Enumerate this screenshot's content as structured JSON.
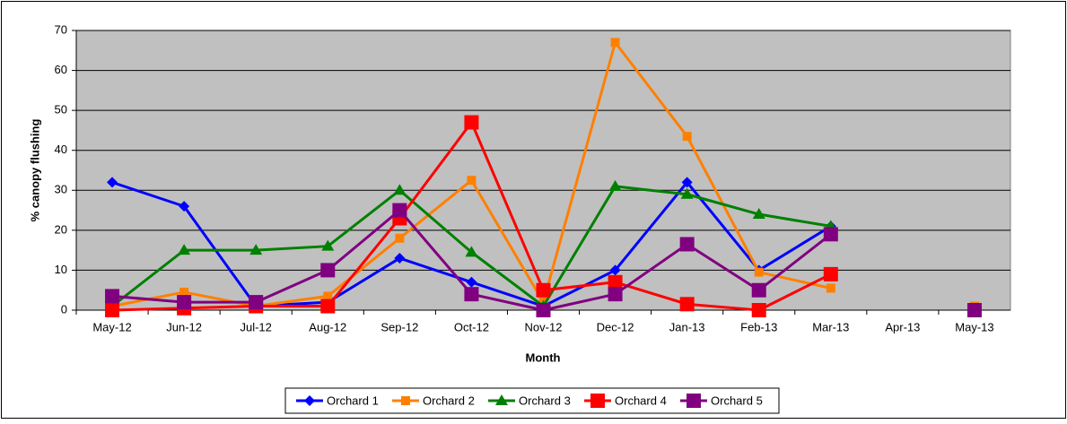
{
  "chart_data": {
    "type": "line",
    "y_label": "% canopy flushing",
    "x_label": "Month",
    "categories": [
      "May-12",
      "Jun-12",
      "Jul-12",
      "Aug-12",
      "Sep-12",
      "Oct-12",
      "Nov-12",
      "Dec-12",
      "Jan-13",
      "Feb-13",
      "Mar-13",
      "Apr-13",
      "May-13"
    ],
    "series": [
      {
        "name": "Orchard 1",
        "color": "#0000ff",
        "marker": "diamond",
        "values": [
          32,
          26,
          1,
          2,
          13,
          7,
          1,
          10,
          32,
          10,
          21,
          null,
          null
        ]
      },
      {
        "name": "Orchard 2",
        "color": "#ff8000",
        "marker": "square",
        "values": [
          1,
          4.5,
          1,
          3.5,
          18,
          32.5,
          2,
          67,
          43.5,
          9.5,
          5.5,
          null,
          1
        ]
      },
      {
        "name": "Orchard 3",
        "color": "#008000",
        "marker": "triangle",
        "values": [
          1,
          15,
          15,
          16,
          30,
          14.5,
          1,
          31,
          29,
          24,
          21,
          null,
          null
        ]
      },
      {
        "name": "Orchard 4",
        "color": "#ff0000",
        "marker": "big-square",
        "values": [
          0,
          0.5,
          1,
          1,
          23,
          47,
          5,
          7,
          1.5,
          0,
          9,
          null,
          null
        ]
      },
      {
        "name": "Orchard 5",
        "color": "#800080",
        "marker": "big-square",
        "values": [
          3.5,
          2,
          2,
          10,
          25,
          4,
          0,
          4,
          16.5,
          5,
          19,
          null,
          0
        ]
      }
    ],
    "ylim": [
      0,
      70
    ],
    "yticks": [
      0,
      10,
      20,
      30,
      40,
      50,
      60,
      70
    ],
    "grid": true,
    "legend": "bottom"
  }
}
